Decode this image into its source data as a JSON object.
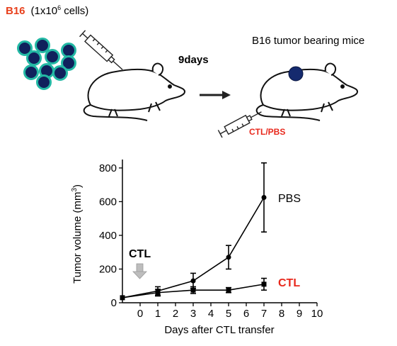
{
  "header": {
    "cell_line": "B16",
    "cell_count_prefix": "(1x10",
    "cell_count_exp": "6",
    "cell_count_suffix": " cells)"
  },
  "schematic": {
    "days_label": "9days",
    "mice_label": "B16 tumor bearing mice",
    "treatment_label": "CTL/PBS"
  },
  "colors": {
    "b16_label": "#e8401c",
    "treatment_label": "#e8281c",
    "cell_fill": "#10215c",
    "cell_ring": "#23b8a4",
    "tumor": "#152a6e",
    "ctl_series": "#e8281c",
    "arrow_gray": "#bdbdbd"
  },
  "icons": [
    "cell-icon",
    "syringe-icon",
    "mouse-icon",
    "right-arrow-icon",
    "down-arrow-icon"
  ],
  "chart_data": {
    "type": "line",
    "title": "",
    "xlabel": "Days after CTL transfer",
    "ylabel_prefix": "Tumor volume (mm",
    "ylabel_exp": "3",
    "ylabel_suffix": ")",
    "xlim": [
      -1,
      10
    ],
    "ylim": [
      0,
      850
    ],
    "xticks": [
      0,
      1,
      2,
      3,
      4,
      5,
      6,
      7,
      8,
      9,
      10
    ],
    "yticks": [
      0,
      200,
      400,
      600,
      800
    ],
    "annotation": "CTL",
    "grid": false,
    "series": [
      {
        "name": "PBS",
        "marker": "circle",
        "points": [
          {
            "x": -1,
            "y": 30,
            "err": 0
          },
          {
            "x": 1,
            "y": 70,
            "err": 25
          },
          {
            "x": 3,
            "y": 130,
            "err": 45
          },
          {
            "x": 5,
            "y": 270,
            "err": 70
          },
          {
            "x": 7,
            "y": 625,
            "err": 205
          }
        ]
      },
      {
        "name": "CTL",
        "marker": "square",
        "points": [
          {
            "x": -1,
            "y": 30,
            "err": 0
          },
          {
            "x": 1,
            "y": 60,
            "err": 20
          },
          {
            "x": 3,
            "y": 75,
            "err": 20
          },
          {
            "x": 5,
            "y": 75,
            "err": 15
          },
          {
            "x": 7,
            "y": 110,
            "err": 35
          }
        ]
      }
    ]
  }
}
